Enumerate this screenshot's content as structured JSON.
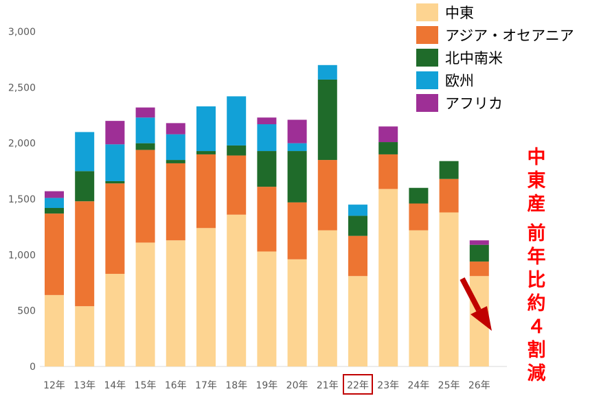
{
  "chart_data": {
    "type": "bar",
    "stacked": true,
    "categories": [
      "12年",
      "13年",
      "14年",
      "15年",
      "16年",
      "17年",
      "18年",
      "19年",
      "20年",
      "21年",
      "22年",
      "23年",
      "24年",
      "25年",
      "26年"
    ],
    "yticks": [
      "0",
      "500",
      "1,000",
      "1,500",
      "2,000",
      "2,500",
      "3,000"
    ],
    "ylim": [
      0,
      3000
    ],
    "grid": false,
    "legend_position": "top-right",
    "series": [
      {
        "name": "中東",
        "color": "#fdd491",
        "values": [
          640,
          540,
          830,
          1110,
          1130,
          1240,
          1360,
          1030,
          960,
          1220,
          810,
          1590,
          1220,
          1380,
          810
        ]
      },
      {
        "name": "アジア・オセアニア",
        "color": "#ed7532",
        "values": [
          730,
          940,
          810,
          830,
          690,
          660,
          530,
          580,
          510,
          630,
          360,
          310,
          240,
          300,
          130
        ]
      },
      {
        "name": "北中南米",
        "color": "#1f6b2a",
        "values": [
          50,
          270,
          20,
          60,
          30,
          30,
          90,
          320,
          460,
          720,
          180,
          110,
          140,
          160,
          150
        ]
      },
      {
        "name": "欧州",
        "color": "#12a1d7",
        "values": [
          90,
          350,
          330,
          230,
          230,
          400,
          440,
          240,
          70,
          130,
          100,
          0,
          0,
          0,
          0
        ]
      },
      {
        "name": "アフリカ",
        "color": "#9e2f96",
        "values": [
          60,
          0,
          210,
          90,
          100,
          0,
          0,
          60,
          210,
          0,
          0,
          140,
          0,
          0,
          40
        ]
      }
    ],
    "highlighted_category": "22年",
    "annotation": {
      "text_lines": [
        "中",
        "東",
        "産",
        "前",
        "年",
        "比",
        "約",
        "４",
        "割",
        "減"
      ],
      "color": "#ff0000"
    }
  }
}
